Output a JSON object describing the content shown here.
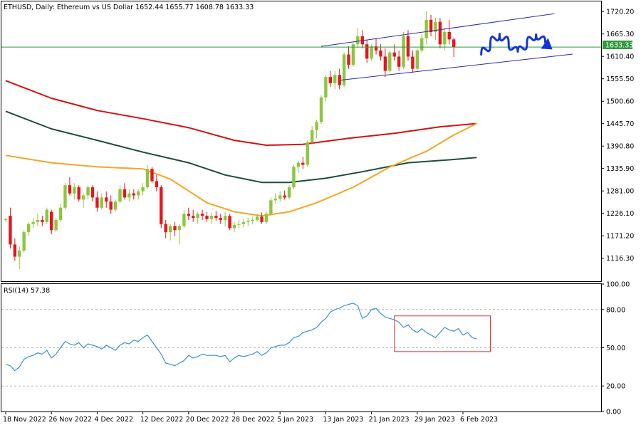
{
  "header": {
    "symbol": "ETHUSD, Daily:",
    "description": "Ethereum vs US Dollar",
    "ohlc": "1652.44 1655.77 1608.78 1633.33"
  },
  "price_badge": "1633.33",
  "rsi_label": "RSI(14) 57.38",
  "colors": {
    "bull": "#8dc63f",
    "bear": "#e8141c",
    "ma_red": "#d41010",
    "ma_green": "#1e4d3a",
    "ma_orange": "#f5a623",
    "channel": "#2a2aa8",
    "hline": "#2e9b3c",
    "rsi_line": "#3a8fd6",
    "arrow": "#1434d4",
    "highlight_box": "#e03030"
  },
  "chart_data": [
    {
      "type": "candlestick",
      "panel": "price",
      "y_ticks": [
        "1720.20",
        "1665.30",
        "1610.40",
        "1555.50",
        "1500.60",
        "1445.70",
        "1390.80",
        "1335.90",
        "1281.00",
        "1226.10",
        "1171.20",
        "1116.30"
      ],
      "ylim": [
        1060,
        1745
      ],
      "x_tick_labels": [
        "18 Nov 2022",
        "26 Nov 2022",
        "4 Dec 2022",
        "12 Dec 2022",
        "20 Dec 2022",
        "28 Dec 2022",
        "5 Jan 2023",
        "13 Jan 2023",
        "21 Jan 2023",
        "29 Jan 2023",
        "6 Feb 2023"
      ],
      "x_tick_bar_index": [
        0,
        10,
        20,
        30,
        40,
        50,
        60,
        70,
        80,
        90,
        100
      ],
      "candles": [
        [
          1210,
          1215,
          1205,
          1212
        ],
        [
          1220,
          1240,
          1140,
          1150
        ],
        [
          1150,
          1165,
          1110,
          1120
        ],
        [
          1120,
          1145,
          1090,
          1135
        ],
        [
          1135,
          1185,
          1130,
          1180
        ],
        [
          1180,
          1205,
          1170,
          1200
        ],
        [
          1200,
          1215,
          1190,
          1205
        ],
        [
          1205,
          1225,
          1195,
          1210
        ],
        [
          1210,
          1220,
          1195,
          1205
        ],
        [
          1205,
          1240,
          1200,
          1235
        ],
        [
          1230,
          1235,
          1175,
          1185
        ],
        [
          1185,
          1215,
          1180,
          1210
        ],
        [
          1210,
          1250,
          1205,
          1240
        ],
        [
          1240,
          1300,
          1235,
          1295
        ],
        [
          1295,
          1315,
          1270,
          1275
        ],
        [
          1275,
          1300,
          1260,
          1290
        ],
        [
          1290,
          1295,
          1255,
          1260
        ],
        [
          1260,
          1275,
          1240,
          1270
        ],
        [
          1270,
          1295,
          1260,
          1290
        ],
        [
          1290,
          1295,
          1255,
          1265
        ],
        [
          1265,
          1280,
          1230,
          1240
        ],
        [
          1240,
          1275,
          1235,
          1265
        ],
        [
          1265,
          1280,
          1240,
          1255
        ],
        [
          1255,
          1270,
          1225,
          1235
        ],
        [
          1235,
          1260,
          1230,
          1255
        ],
        [
          1255,
          1295,
          1250,
          1285
        ],
        [
          1285,
          1300,
          1260,
          1265
        ],
        [
          1265,
          1285,
          1255,
          1275
        ],
        [
          1275,
          1285,
          1260,
          1270
        ],
        [
          1270,
          1285,
          1260,
          1280
        ],
        [
          1280,
          1300,
          1270,
          1290
        ],
        [
          1290,
          1345,
          1285,
          1335
        ],
        [
          1335,
          1340,
          1300,
          1305
        ],
        [
          1305,
          1320,
          1280,
          1290
        ],
        [
          1290,
          1295,
          1190,
          1200
        ],
        [
          1200,
          1210,
          1165,
          1180
        ],
        [
          1180,
          1200,
          1160,
          1195
        ],
        [
          1195,
          1205,
          1170,
          1185
        ],
        [
          1185,
          1200,
          1150,
          1195
        ],
        [
          1195,
          1235,
          1190,
          1225
        ],
        [
          1225,
          1240,
          1210,
          1220
        ],
        [
          1220,
          1235,
          1205,
          1215
        ],
        [
          1215,
          1230,
          1200,
          1225
        ],
        [
          1225,
          1235,
          1210,
          1220
        ],
        [
          1220,
          1230,
          1205,
          1212
        ],
        [
          1212,
          1228,
          1200,
          1220
        ],
        [
          1220,
          1232,
          1208,
          1215
        ],
        [
          1215,
          1225,
          1200,
          1210
        ],
        [
          1210,
          1230,
          1195,
          1220
        ],
        [
          1220,
          1225,
          1185,
          1190
        ],
        [
          1190,
          1205,
          1180,
          1198
        ],
        [
          1198,
          1210,
          1190,
          1200
        ],
        [
          1200,
          1212,
          1192,
          1205
        ],
        [
          1205,
          1215,
          1195,
          1208
        ],
        [
          1208,
          1218,
          1200,
          1210
        ],
        [
          1210,
          1225,
          1205,
          1218
        ],
        [
          1218,
          1228,
          1200,
          1205
        ],
        [
          1205,
          1230,
          1200,
          1225
        ],
        [
          1225,
          1265,
          1220,
          1258
        ],
        [
          1258,
          1275,
          1250,
          1262
        ],
        [
          1262,
          1280,
          1255,
          1270
        ],
        [
          1270,
          1282,
          1260,
          1265
        ],
        [
          1265,
          1295,
          1260,
          1290
        ],
        [
          1290,
          1345,
          1285,
          1340
        ],
        [
          1340,
          1355,
          1325,
          1350
        ],
        [
          1350,
          1365,
          1335,
          1345
        ],
        [
          1345,
          1405,
          1340,
          1400
        ],
        [
          1400,
          1440,
          1395,
          1430
        ],
        [
          1430,
          1455,
          1410,
          1450
        ],
        [
          1450,
          1515,
          1445,
          1510
        ],
        [
          1510,
          1565,
          1500,
          1560
        ],
        [
          1560,
          1575,
          1535,
          1545
        ],
        [
          1545,
          1575,
          1530,
          1565
        ],
        [
          1565,
          1580,
          1530,
          1540
        ],
        [
          1540,
          1620,
          1535,
          1615
        ],
        [
          1615,
          1635,
          1580,
          1590
        ],
        [
          1590,
          1645,
          1585,
          1640
        ],
        [
          1640,
          1680,
          1630,
          1660
        ],
        [
          1660,
          1675,
          1630,
          1640
        ],
        [
          1640,
          1650,
          1595,
          1605
        ],
        [
          1605,
          1640,
          1600,
          1635
        ],
        [
          1635,
          1655,
          1615,
          1625
        ],
        [
          1625,
          1640,
          1600,
          1610
        ],
        [
          1610,
          1630,
          1560,
          1575
        ],
        [
          1575,
          1625,
          1570,
          1620
        ],
        [
          1620,
          1640,
          1600,
          1610
        ],
        [
          1610,
          1625,
          1575,
          1585
        ],
        [
          1585,
          1670,
          1580,
          1660
        ],
        [
          1660,
          1675,
          1600,
          1610
        ],
        [
          1610,
          1625,
          1570,
          1580
        ],
        [
          1580,
          1630,
          1575,
          1625
        ],
        [
          1625,
          1665,
          1620,
          1655
        ],
        [
          1655,
          1720,
          1640,
          1700
        ],
        [
          1700,
          1712,
          1660,
          1670
        ],
        [
          1670,
          1705,
          1650,
          1695
        ],
        [
          1695,
          1705,
          1630,
          1640
        ],
        [
          1640,
          1680,
          1625,
          1670
        ],
        [
          1670,
          1700,
          1640,
          1652
        ],
        [
          1652,
          1656,
          1609,
          1633
        ]
      ]
    },
    {
      "type": "line",
      "panel": "price",
      "series": [
        {
          "name": "",
          "color_key": "ma_red",
          "points": [
            [
              0,
              1551
            ],
            [
              10,
              1508
            ],
            [
              20,
              1478
            ],
            [
              30,
              1458
            ],
            [
              40,
              1436
            ],
            [
              50,
              1405
            ],
            [
              57,
              1393
            ],
            [
              65,
              1395
            ],
            [
              75,
              1410
            ],
            [
              85,
              1422
            ],
            [
              95,
              1438
            ],
            [
              103,
              1446
            ]
          ]
        },
        {
          "name": "",
          "color_key": "ma_green",
          "points": [
            [
              0,
              1476
            ],
            [
              10,
              1433
            ],
            [
              20,
              1405
            ],
            [
              30,
              1376
            ],
            [
              40,
              1350
            ],
            [
              48,
              1320
            ],
            [
              56,
              1302
            ],
            [
              62,
              1302
            ],
            [
              70,
              1312
            ],
            [
              78,
              1328
            ],
            [
              88,
              1350
            ],
            [
              98,
              1358
            ],
            [
              103,
              1363
            ]
          ]
        },
        {
          "name": "",
          "color_key": "ma_orange",
          "points": [
            [
              0,
              1368
            ],
            [
              10,
              1350
            ],
            [
              20,
              1340
            ],
            [
              30,
              1335
            ],
            [
              36,
              1310
            ],
            [
              44,
              1252
            ],
            [
              50,
              1230
            ],
            [
              56,
              1220
            ],
            [
              62,
              1230
            ],
            [
              68,
              1252
            ],
            [
              76,
              1290
            ],
            [
              84,
              1340
            ],
            [
              92,
              1378
            ],
            [
              98,
              1418
            ],
            [
              103,
              1446
            ]
          ]
        }
      ]
    },
    {
      "type": "line",
      "panel": "rsi",
      "indicator": "RSI(14)",
      "y_ticks": [
        "100.00",
        "80.00",
        "50.00",
        "20.00",
        "0.00"
      ],
      "ylim": [
        0,
        100
      ],
      "values": [
        37,
        36,
        32,
        35,
        41,
        43,
        44,
        46,
        45,
        48,
        42,
        45,
        50,
        55,
        53,
        52,
        54,
        50,
        53,
        52,
        51,
        49,
        52,
        50,
        48,
        52,
        54,
        53,
        56,
        55,
        58,
        60,
        55,
        50,
        45,
        38,
        37,
        36,
        38,
        40,
        44,
        42,
        43,
        45,
        44,
        44,
        44,
        43,
        44,
        39,
        42,
        44,
        43,
        44,
        45,
        47,
        44,
        46,
        50,
        51,
        52,
        52,
        54,
        58,
        59,
        62,
        63,
        64,
        66,
        70,
        73,
        78,
        80,
        81,
        83,
        84,
        85,
        83,
        73,
        75,
        80,
        81,
        77,
        74,
        73,
        72,
        70,
        66,
        68,
        64,
        62,
        65,
        62,
        60,
        58,
        62,
        66,
        64,
        63,
        65,
        60,
        62,
        58,
        57
      ]
    },
    {
      "type": "annotation",
      "items": [
        {
          "kind": "channel_upper",
          "from": [
            69,
            1635
          ],
          "to": [
            120,
            1715
          ]
        },
        {
          "kind": "channel_lower",
          "from": [
            73,
            1552
          ],
          "to": [
            124,
            1616
          ]
        },
        {
          "kind": "horizontal_line",
          "y": 1633.33
        },
        {
          "kind": "projection_arrow",
          "points": [
            [
              104,
              1615
            ],
            [
              106,
              1640
            ],
            [
              108,
              1668
            ],
            [
              110,
              1640
            ],
            [
              112,
              1620
            ],
            [
              114,
              1642
            ],
            [
              116,
              1666
            ],
            [
              118,
              1645
            ]
          ]
        },
        {
          "kind": "rsi_box",
          "x_range": [
            85,
            106
          ],
          "y_range": [
            47,
            75
          ]
        }
      ]
    }
  ]
}
